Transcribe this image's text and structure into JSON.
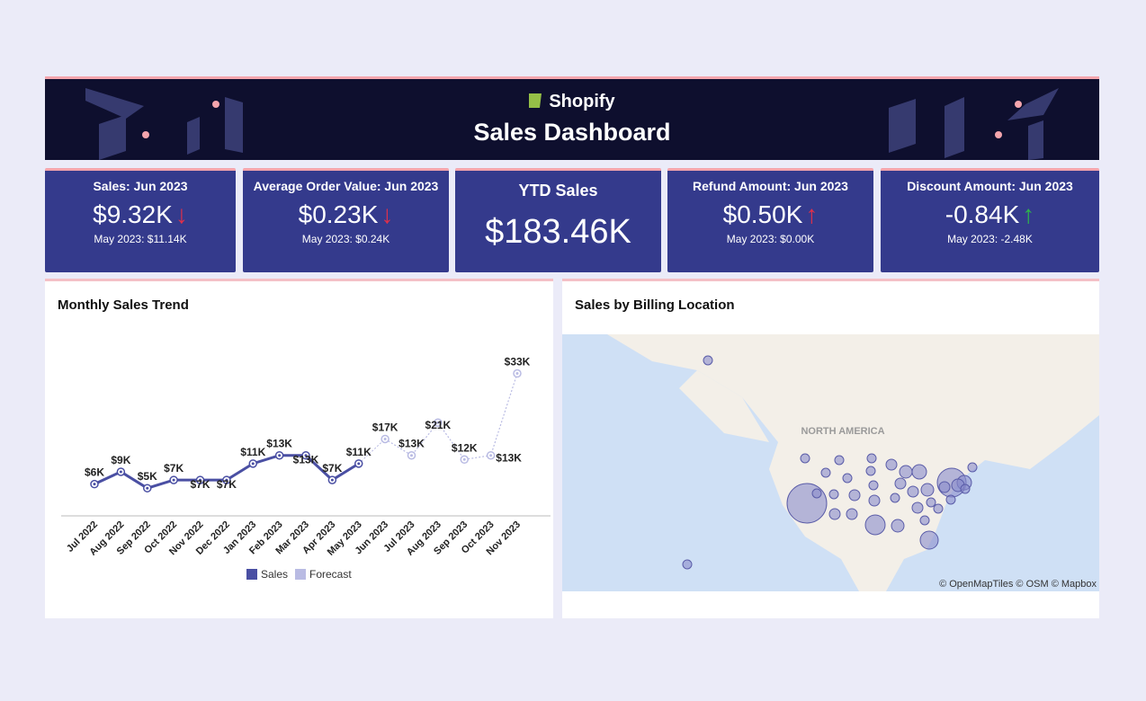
{
  "header": {
    "brand": "Shopify",
    "title": "Sales Dashboard"
  },
  "kpis": [
    {
      "title": "Sales: Jun 2023",
      "value": "$9.32K",
      "trend": "down",
      "trend_color": "#e0304a",
      "compare": "May 2023: $11.14K"
    },
    {
      "title": "Average Order Value: Jun 2023",
      "value": "$0.23K",
      "trend": "down",
      "trend_color": "#e0304a",
      "compare": "May 2023: $0.24K"
    },
    {
      "title": "YTD Sales",
      "value": "$183.46K"
    },
    {
      "title": "Refund Amount: Jun 2023",
      "value": "$0.50K",
      "trend": "up",
      "trend_color": "#e0304a",
      "compare": "May 2023: $0.00K"
    },
    {
      "title": "Discount Amount: Jun 2023",
      "value": "-0.84K",
      "trend": "up",
      "trend_color": "#2eb84a",
      "compare": "May 2023: -2.48K"
    }
  ],
  "chart_data": {
    "type": "line",
    "title": "Monthly Sales Trend",
    "categories": [
      "Jul 2022",
      "Aug 2022",
      "Sep 2022",
      "Oct 2022",
      "Nov 2022",
      "Dec 2022",
      "Jan 2023",
      "Feb 2023",
      "Mar 2023",
      "Apr 2023",
      "May 2023",
      "Jun 2023",
      "Jul 2023",
      "Aug 2023",
      "Sep 2023",
      "Oct 2023",
      "Nov 2023"
    ],
    "series": [
      {
        "name": "Sales",
        "color": "#4a4fa3",
        "values": [
          6,
          9,
          5,
          7,
          7,
          7,
          11,
          13,
          13,
          7,
          11,
          null,
          null,
          null,
          null,
          null,
          null
        ],
        "value_labels": [
          "$6K",
          "$9K",
          "$5K",
          "$7K",
          "$7K",
          "$7K",
          "$11K",
          "$13K",
          "$13K",
          "$7K",
          "$11K",
          null,
          null,
          null,
          null,
          null,
          null
        ]
      },
      {
        "name": "Forecast",
        "color": "#b9bbe3",
        "values": [
          null,
          null,
          null,
          null,
          null,
          null,
          null,
          null,
          null,
          null,
          null,
          17,
          13,
          21,
          12,
          13,
          33
        ],
        "value_labels": [
          null,
          null,
          null,
          null,
          null,
          null,
          null,
          null,
          null,
          null,
          null,
          "$17K",
          "$13K",
          "$21K",
          "$12K",
          "$13K",
          "$33K"
        ]
      }
    ]
  },
  "map": {
    "title": "Sales by Billing Location",
    "region_label": "NORTH AMERICA",
    "attribution": "© OpenMapTiles © OSM © Mapbox"
  }
}
